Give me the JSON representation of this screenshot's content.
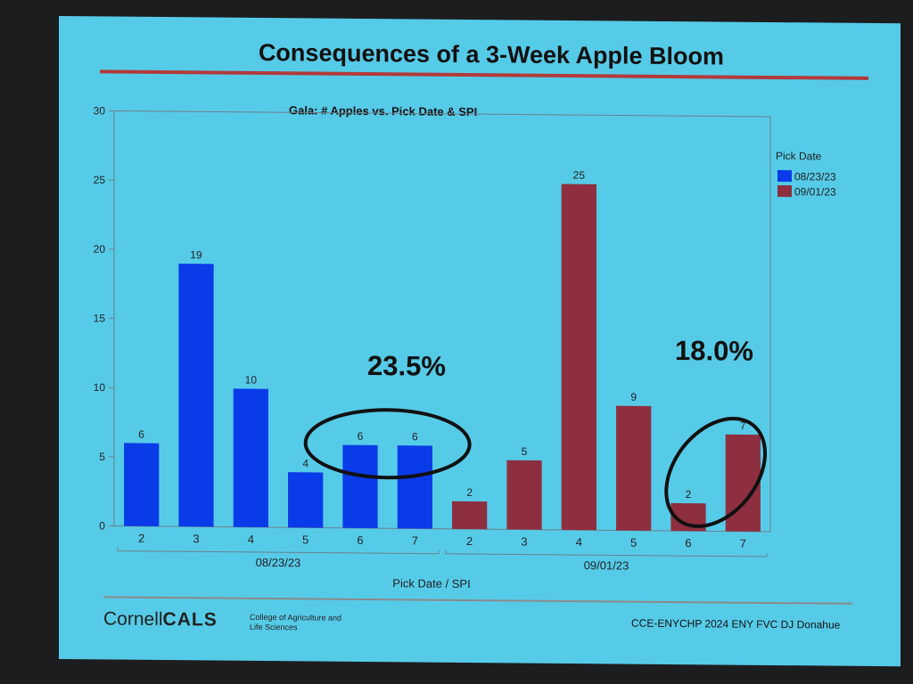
{
  "slide": {
    "title": "Consequences of a 3-Week Apple Bloom",
    "logo_text": "Cornell",
    "logo_bold": "CALS",
    "logo_subtitle": "College of Agriculture and Life Sciences",
    "credit": "CCE-ENYCHP 2024 ENY FVC DJ Donahue"
  },
  "annotations": [
    {
      "text": "23.5%",
      "group": "08/23/23",
      "circled": [
        "6",
        "7"
      ]
    },
    {
      "text": "18.0%",
      "group": "09/01/23",
      "circled": [
        "6",
        "7"
      ]
    }
  ],
  "chart_data": {
    "type": "bar",
    "title": "Gala:  # Apples vs. Pick Date & SPI",
    "xlabel": "Pick Date / SPI",
    "ylabel": "",
    "ylim": [
      0,
      30
    ],
    "yticks": [
      0,
      5,
      10,
      15,
      20,
      25,
      30
    ],
    "legend": {
      "title": "Pick Date",
      "position": "right"
    },
    "groups": [
      "08/23/23",
      "09/01/23"
    ],
    "categories": [
      "2",
      "3",
      "4",
      "5",
      "6",
      "7"
    ],
    "series": [
      {
        "name": "08/23/23",
        "color": "#0a3be8",
        "values": [
          6,
          19,
          10,
          4,
          6,
          6
        ]
      },
      {
        "name": "09/01/23",
        "color": "#8e2f3f",
        "values": [
          2,
          5,
          25,
          9,
          2,
          7
        ]
      }
    ]
  }
}
